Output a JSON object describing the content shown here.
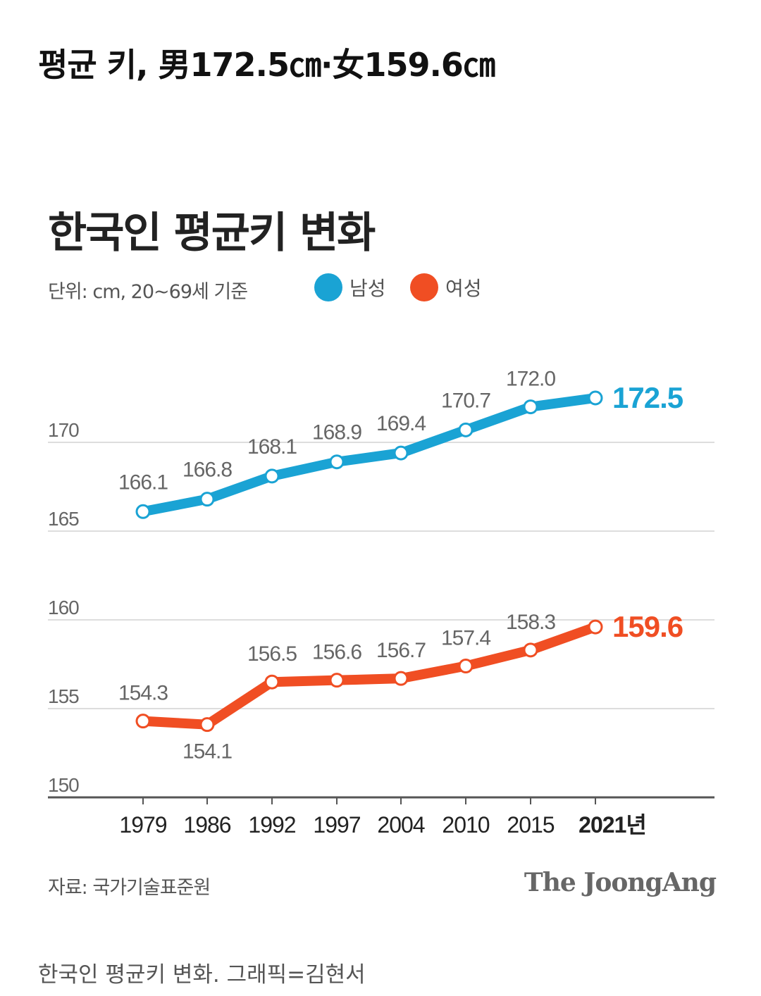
{
  "headline": "평균 키, 男172.5㎝·女159.6㎝",
  "chart_title": "한국인 평균키 변화",
  "unit_note": "단위: cm, 20~69세 기준",
  "source": "자료: 국가기술표준원",
  "logo": "The JoongAng",
  "caption": "한국인 평균키 변화. 그래픽=김현서",
  "colors": {
    "male": "#1aa3d4",
    "female": "#f04e23",
    "grid": "#dddddd",
    "axis": "#555555",
    "label": "#666666"
  },
  "chart_data": {
    "type": "line",
    "title": "한국인 평균키 변화",
    "categories": [
      "1979",
      "1986",
      "1992",
      "1997",
      "2004",
      "2010",
      "2015",
      "2021년"
    ],
    "y_ticks": [
      "150",
      "155",
      "160",
      "165",
      "170"
    ],
    "ylim": [
      150,
      175
    ],
    "grid": true,
    "legend_position": "top",
    "series": [
      {
        "name": "남성",
        "values": [
          166.1,
          166.8,
          168.1,
          168.9,
          169.4,
          170.7,
          172.0,
          172.5
        ],
        "labels": [
          "166.1",
          "166.8",
          "168.1",
          "168.9",
          "169.4",
          "170.7",
          "172.0",
          "172.5"
        ]
      },
      {
        "name": "여성",
        "values": [
          154.3,
          154.1,
          156.5,
          156.6,
          156.7,
          157.4,
          158.3,
          159.6
        ],
        "labels": [
          "154.3",
          "154.1",
          "156.5",
          "156.6",
          "156.7",
          "157.4",
          "158.3",
          "159.6"
        ]
      }
    ]
  }
}
